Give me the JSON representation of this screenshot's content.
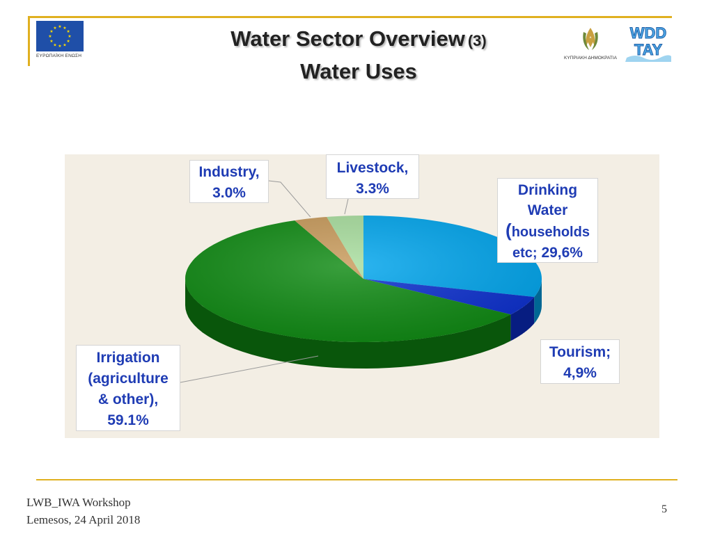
{
  "header": {
    "title_line1": "Water Sector Overview",
    "title_suffix": "(3)",
    "title_line2": "Water Uses",
    "eu_caption": "ΕΥΡΩΠΑΪΚΗ ΕΝΩΣΗ",
    "cy_caption": "ΚΥΠΡΙΑΚΗ ΔΗΜΟΚΡΑΤΙΑ",
    "wdd_logo_text_top": "WDD",
    "wdd_logo_text_bottom": "ΤΑΥ"
  },
  "footer": {
    "line1": "LWB_IWA Workshop",
    "line2": "Lemesos, 24 April 2018",
    "page_number": "5"
  },
  "chart_data": {
    "type": "pie",
    "style": "3d",
    "start_angle": "12 o'clock",
    "direction": "clockwise",
    "slices": [
      {
        "name": "Drinking Water (households etc)",
        "value": 29.6,
        "color": "#00A6EE"
      },
      {
        "name": "Tourism",
        "value": 4.9,
        "color": "#0B2FD0"
      },
      {
        "name": "Irrigation (agriculture & other)",
        "value": 59.1,
        "color": "#0E8A12"
      },
      {
        "name": "Industry",
        "value": 3.0,
        "color": "#C89A5A"
      },
      {
        "name": "Livestock",
        "value": 3.3,
        "color": "#A8DE9E"
      }
    ],
    "labels": {
      "drinking": {
        "line1": "Drinking",
        "line2": "Water",
        "line3_paren": "(",
        "line3": "households",
        "line4a": "etc;",
        "line4b": "29,6%"
      },
      "tourism": {
        "line1": "Tourism;",
        "line2": "4,9%"
      },
      "irrigation": {
        "line1": "Irrigation",
        "line2": "(agriculture",
        "line3": "& other),",
        "line4": "59.1%"
      },
      "industry": {
        "line1": "Industry,",
        "line2": "3.0%"
      },
      "livestock": {
        "line1": "Livestock,",
        "line2": "3.3%"
      }
    },
    "background_color": "#F3EEE4"
  }
}
